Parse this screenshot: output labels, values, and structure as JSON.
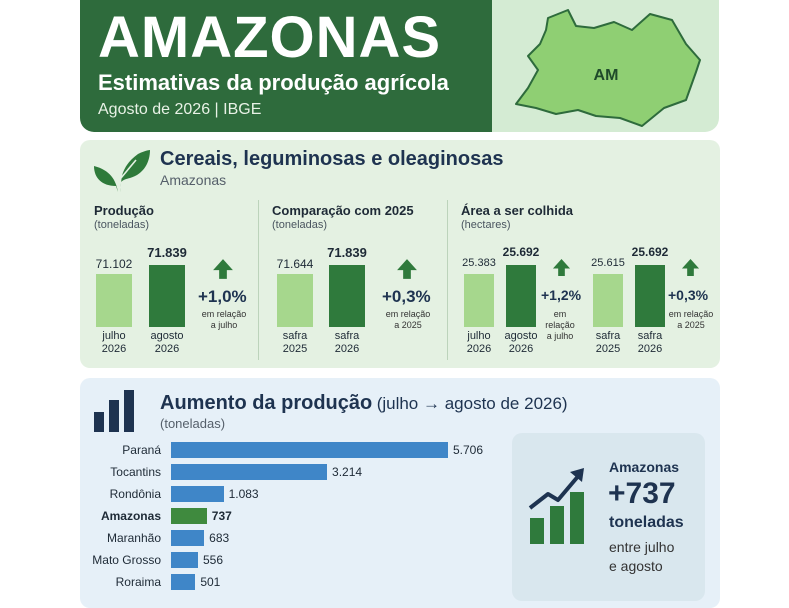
{
  "header": {
    "title": "AMAZONAS",
    "subtitle": "Estimativas da produção agrícola",
    "dateline": "Agosto de 2026 | IBGE",
    "map_label": "AM",
    "colors": {
      "dark_green": "#2e6b3c",
      "map_fill": "#8fcf73",
      "map_bg": "#d4ebd3"
    }
  },
  "section1": {
    "title": "Cereais, leguminosas e oleaginosas",
    "subtitle": "Amazonas",
    "icon": "leaf-icon"
  },
  "section2": {
    "title": "Aumento da produção",
    "title_suffix": "(julho → agosto de 2026)",
    "subtitle": "(toneladas)",
    "icon": "bar-chart-icon"
  },
  "callout": {
    "state": "Amazonas",
    "value": "+737",
    "unit": "toneladas",
    "line1": "entre julho",
    "line2": "e agosto",
    "icon": "growth-chart-icon"
  },
  "chart_data": [
    {
      "type": "bar",
      "title": "Produção",
      "unit_label": "(toneladas)",
      "categories": [
        "julho 2026",
        "agosto 2026"
      ],
      "category_lines": [
        [
          "julho",
          "2026"
        ],
        [
          "agosto",
          "2026"
        ]
      ],
      "values": [
        71102,
        71839
      ],
      "value_labels": [
        "71.102",
        "71.839"
      ],
      "change": "+1,0%",
      "change_note": [
        "em relação",
        "a julho"
      ]
    },
    {
      "type": "bar",
      "title": "Comparação com 2025",
      "unit_label": "(toneladas)",
      "categories": [
        "safra 2025",
        "safra 2026"
      ],
      "category_lines": [
        [
          "safra",
          "2025"
        ],
        [
          "safra",
          "2026"
        ]
      ],
      "values": [
        71644,
        71839
      ],
      "value_labels": [
        "71.644",
        "71.839"
      ],
      "change": "+0,3%",
      "change_note": [
        "em relação",
        "a 2025"
      ]
    },
    {
      "type": "bar",
      "title": "Área a ser colhida",
      "unit_label": "(hectares)",
      "groups": [
        {
          "categories": [
            "julho 2026",
            "agosto 2026"
          ],
          "category_lines": [
            [
              "julho",
              "2026"
            ],
            [
              "agosto",
              "2026"
            ]
          ],
          "values": [
            25383,
            25692
          ],
          "value_labels": [
            "25.383",
            "25.692"
          ],
          "change": "+1,2%",
          "change_note": [
            "em",
            "relação",
            "a julho"
          ]
        },
        {
          "categories": [
            "safra 2025",
            "safra 2026"
          ],
          "category_lines": [
            [
              "safra",
              "2025"
            ],
            [
              "safra",
              "2026"
            ]
          ],
          "values": [
            25615,
            25692
          ],
          "value_labels": [
            "25.615",
            "25.692"
          ],
          "change": "+0,3%",
          "change_note": [
            "em relação",
            "a 2025"
          ]
        }
      ]
    },
    {
      "type": "bar",
      "orientation": "horizontal",
      "title": "Aumento da produção (julho → agosto de 2026)",
      "unit_label": "(toneladas)",
      "categories": [
        "Paraná",
        "Tocantins",
        "Rondônia",
        "Amazonas",
        "Maranhão",
        "Mato Grosso",
        "Roraima"
      ],
      "values": [
        5706,
        3214,
        1083,
        737,
        683,
        556,
        501
      ],
      "value_labels": [
        "5.706",
        "3.214",
        "1.083",
        "737",
        "683",
        "556",
        "501"
      ],
      "highlight": "Amazonas",
      "colors": {
        "bar": "#3f86c8",
        "highlight": "#3f8a3e"
      }
    }
  ]
}
